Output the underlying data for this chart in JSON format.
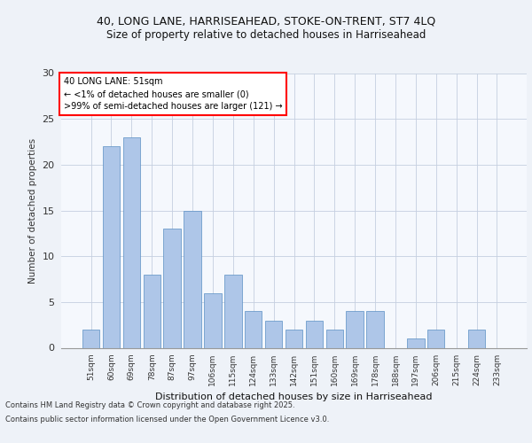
{
  "title1": "40, LONG LANE, HARRISEAHEAD, STOKE-ON-TRENT, ST7 4LQ",
  "title2": "Size of property relative to detached houses in Harriseahead",
  "xlabel": "Distribution of detached houses by size in Harriseahead",
  "ylabel": "Number of detached properties",
  "categories": [
    "51sqm",
    "60sqm",
    "69sqm",
    "78sqm",
    "87sqm",
    "97sqm",
    "106sqm",
    "115sqm",
    "124sqm",
    "133sqm",
    "142sqm",
    "151sqm",
    "160sqm",
    "169sqm",
    "178sqm",
    "188sqm",
    "197sqm",
    "206sqm",
    "215sqm",
    "224sqm",
    "233sqm"
  ],
  "values": [
    2,
    22,
    23,
    8,
    13,
    15,
    6,
    8,
    4,
    3,
    2,
    3,
    2,
    4,
    4,
    0,
    1,
    2,
    0,
    2,
    0
  ],
  "bar_color": "#aec6e8",
  "bar_edge_color": "#5a8fc4",
  "annotation_title": "40 LONG LANE: 51sqm",
  "annotation_line1": "← <1% of detached houses are smaller (0)",
  "annotation_line2": ">99% of semi-detached houses are larger (121) →",
  "ylim": [
    0,
    30
  ],
  "yticks": [
    0,
    5,
    10,
    15,
    20,
    25,
    30
  ],
  "footnote1": "Contains HM Land Registry data © Crown copyright and database right 2025.",
  "footnote2": "Contains public sector information licensed under the Open Government Licence v3.0.",
  "bg_color": "#eef2f8",
  "plot_bg_color": "#f5f8fd"
}
